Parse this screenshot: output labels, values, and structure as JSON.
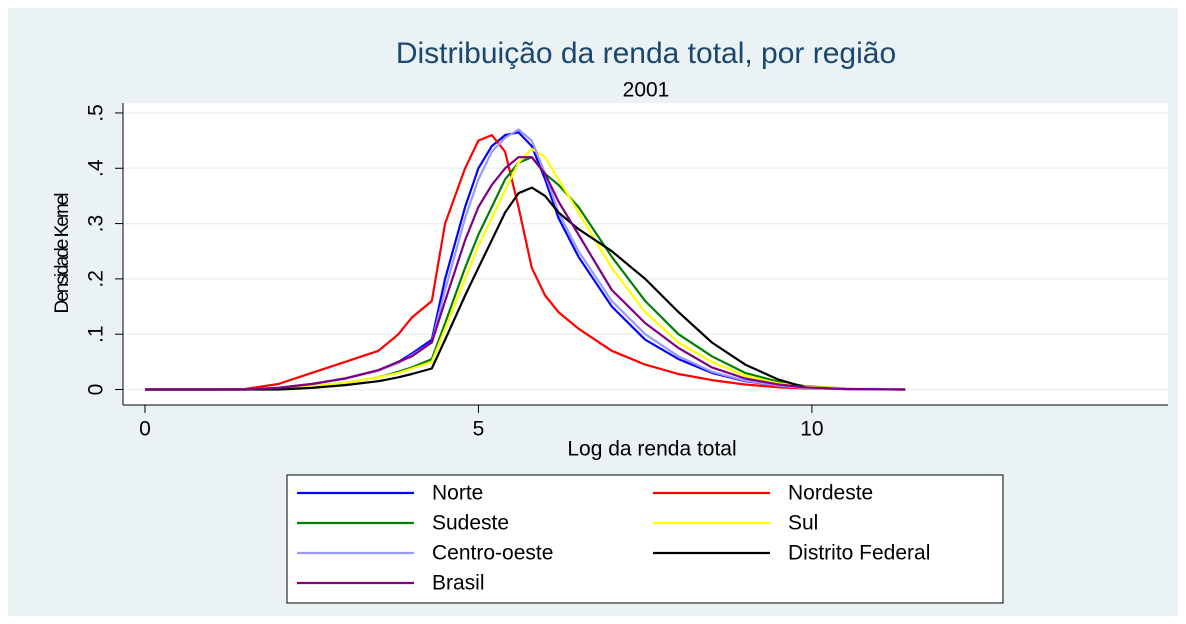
{
  "chart_data": {
    "type": "line",
    "title": "Distribuição da renda total, por região",
    "subtitle": "2001",
    "x_label": "Log da renda total",
    "y_label": "Densidade Kernel",
    "x": [
      0,
      1,
      1.5,
      2,
      2.5,
      3,
      3.5,
      3.8,
      4,
      4.3,
      4.5,
      4.8,
      5,
      5.2,
      5.4,
      5.6,
      5.8,
      6,
      6.2,
      6.5,
      7,
      7.5,
      8,
      8.5,
      9,
      9.5,
      9.9,
      10.5,
      11.4
    ],
    "series": [
      {
        "name": "Norte",
        "color": "#0000ff",
        "values": [
          0,
          0,
          0,
          0.003,
          0.01,
          0.02,
          0.035,
          0.05,
          0.065,
          0.09,
          0.2,
          0.33,
          0.4,
          0.44,
          0.46,
          0.465,
          0.44,
          0.38,
          0.31,
          0.24,
          0.15,
          0.09,
          0.055,
          0.03,
          0.015,
          0.007,
          0.003,
          0.001,
          0
        ]
      },
      {
        "name": "Nordeste",
        "color": "#ff0000",
        "values": [
          0,
          0,
          0.001,
          0.01,
          0.03,
          0.05,
          0.07,
          0.1,
          0.13,
          0.16,
          0.3,
          0.4,
          0.45,
          0.46,
          0.43,
          0.33,
          0.22,
          0.17,
          0.14,
          0.11,
          0.07,
          0.045,
          0.028,
          0.017,
          0.009,
          0.004,
          0.002,
          0.001,
          0
        ]
      },
      {
        "name": "Sudeste",
        "color": "#008000",
        "values": [
          0,
          0,
          0,
          0.002,
          0.006,
          0.012,
          0.022,
          0.032,
          0.04,
          0.055,
          0.12,
          0.22,
          0.28,
          0.33,
          0.38,
          0.41,
          0.42,
          0.39,
          0.37,
          0.33,
          0.24,
          0.16,
          0.1,
          0.06,
          0.03,
          0.014,
          0.006,
          0.002,
          0
        ]
      },
      {
        "name": "Sul",
        "color": "#ffff00",
        "values": [
          0,
          0,
          0,
          0.002,
          0.006,
          0.012,
          0.022,
          0.03,
          0.038,
          0.05,
          0.11,
          0.2,
          0.26,
          0.31,
          0.36,
          0.41,
          0.435,
          0.42,
          0.38,
          0.32,
          0.22,
          0.14,
          0.085,
          0.05,
          0.025,
          0.011,
          0.005,
          0.002,
          0
        ]
      },
      {
        "name": "Centro-oeste",
        "color": "#9999ff",
        "values": [
          0,
          0,
          0,
          0.003,
          0.01,
          0.02,
          0.034,
          0.048,
          0.062,
          0.085,
          0.18,
          0.31,
          0.38,
          0.43,
          0.455,
          0.47,
          0.45,
          0.39,
          0.32,
          0.25,
          0.16,
          0.1,
          0.06,
          0.032,
          0.016,
          0.007,
          0.003,
          0.001,
          0
        ]
      },
      {
        "name": "Distrito Federal",
        "color": "#000000",
        "values": [
          0,
          0,
          0,
          0,
          0.003,
          0.008,
          0.015,
          0.022,
          0.028,
          0.038,
          0.09,
          0.17,
          0.22,
          0.27,
          0.32,
          0.355,
          0.365,
          0.35,
          0.32,
          0.29,
          0.25,
          0.2,
          0.14,
          0.085,
          0.045,
          0.018,
          0.004,
          null,
          null
        ]
      },
      {
        "name": "Brasil",
        "color": "#800080",
        "values": [
          0,
          0,
          0,
          0.003,
          0.01,
          0.02,
          0.035,
          0.05,
          0.06,
          0.085,
          0.16,
          0.27,
          0.33,
          0.37,
          0.4,
          0.42,
          0.42,
          0.39,
          0.34,
          0.28,
          0.18,
          0.12,
          0.075,
          0.04,
          0.02,
          0.009,
          0.004,
          0.001,
          0
        ]
      }
    ],
    "xlim": [
      -0.33,
      15.34
    ],
    "ylim": [
      -0.028,
      0.518
    ],
    "xticks": [
      0,
      5,
      10
    ],
    "yticks": [
      0,
      {
        "value": 0.1,
        "label": ".1"
      },
      {
        "value": 0.2,
        "label": ".2"
      },
      {
        "value": 0.3,
        "label": ".3"
      },
      {
        "value": 0.4,
        "label": ".4"
      },
      {
        "value": 0.5,
        "label": ".5"
      }
    ],
    "grid": true
  }
}
